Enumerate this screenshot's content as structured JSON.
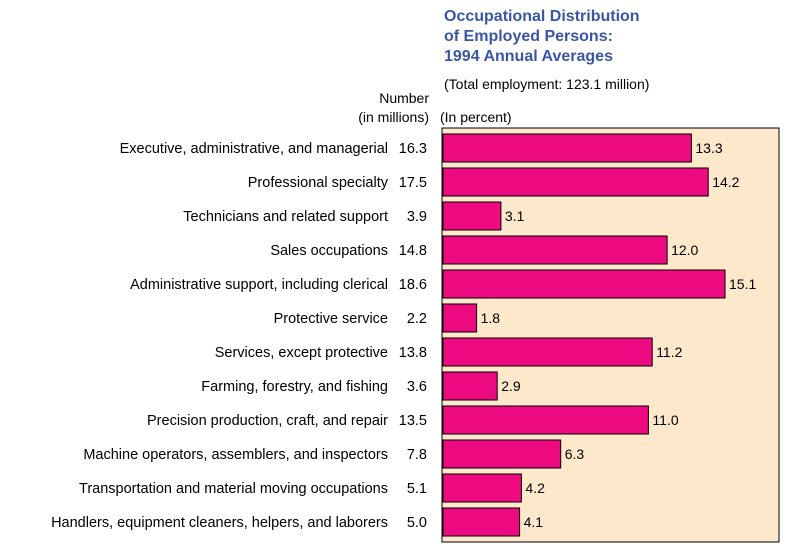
{
  "chart_data": {
    "type": "bar",
    "orientation": "horizontal",
    "title_lines": [
      "Occupational Distribution",
      "of Employed Persons:",
      "1994 Annual Averages"
    ],
    "subtitle": "(Total employment:  123.1 million)",
    "number_header_lines": [
      "Number",
      "(in millions)"
    ],
    "percent_header": "(In percent)",
    "categories": [
      "Executive, administrative, and managerial",
      "Professional specialty",
      "Technicians and related support",
      "Sales occupations",
      "Administrative support, including clerical",
      "Protective service",
      "Services, except protective",
      "Farming, forestry, and fishing",
      "Precision production, craft, and repair",
      "Machine operators, assemblers, and inspectors",
      "Transportation and material moving occupations",
      "Handlers, equipment cleaners, helpers, and laborers"
    ],
    "numbers_millions": [
      "16.3",
      "17.5",
      "3.9",
      "14.8",
      "18.6",
      "2.2",
      "13.8",
      "3.6",
      "13.5",
      "7.8",
      "5.1",
      "5.0"
    ],
    "values": [
      13.3,
      14.2,
      3.1,
      12.0,
      15.1,
      1.8,
      11.2,
      2.9,
      11.0,
      6.3,
      4.2,
      4.1
    ],
    "value_labels": [
      "13.3",
      "14.2",
      "3.1",
      "12.0",
      "15.1",
      "1.8",
      "11.2",
      "2.9",
      "11.0",
      "6.3",
      "4.2",
      "4.1"
    ],
    "xlim": [
      0,
      16
    ],
    "grid": false,
    "colors": {
      "bar_fill": "#ee0a80",
      "plot_background": "#fde8cc",
      "title": "#3a56a6"
    }
  }
}
